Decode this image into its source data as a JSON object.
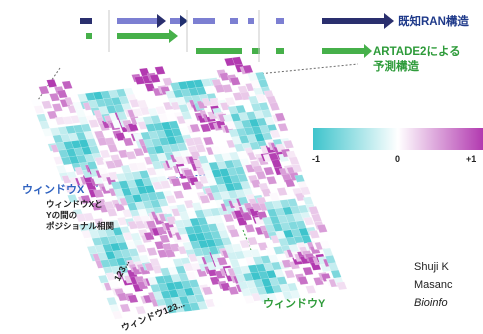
{
  "legend": {
    "known_label": "既知RAN構造",
    "predicted_label_line1": "ARTADE2による",
    "predicted_label_line2": "予測構造"
  },
  "colorbar": {
    "min_label": "-1",
    "mid_label": "0",
    "max_label": "+1",
    "low_color": "#3ec4cc",
    "mid_color": "#ffffff",
    "high_color": "#b23ab0"
  },
  "axes": {
    "window_x_label": "ウィンドウX",
    "window_y_label": "ウィンドウY",
    "short_axis_label": "123...",
    "long_axis_label": "ウィンドウ123..."
  },
  "annotation": {
    "line1": "ウィンドウXと",
    "line2": "Yの間の",
    "line3": "ポジショナル相関"
  },
  "citation": {
    "line1": "Shuji K",
    "line2": "Masanc",
    "line3": "Bioinfo"
  },
  "colors": {
    "known_track": "#7c7fd2",
    "known_arrow": "#1f2e6e",
    "predicted_track": "#46b04a",
    "window_x": "#2f62c0",
    "window_y": "#2e9b3a"
  }
}
